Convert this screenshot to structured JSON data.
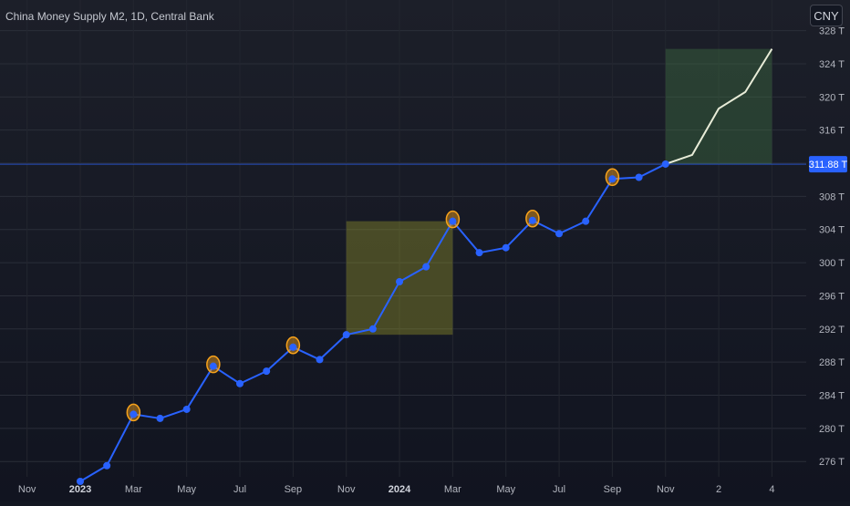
{
  "header": {
    "title": "China Money Supply M2, 1D, Central Bank",
    "currency": "CNY"
  },
  "chart_data": {
    "type": "line",
    "title": "China Money Supply M2, 1D, Central Bank",
    "unit_suffix": "T",
    "ylim": [
      272.5,
      329.5
    ],
    "y_ticks": [
      276,
      280,
      284,
      288,
      292,
      296,
      300,
      304,
      308,
      312,
      316,
      320,
      324,
      328
    ],
    "y_tick_labels": [
      "276 T",
      "280 T",
      "284 T",
      "288 T",
      "292 T",
      "296 T",
      "300 T",
      "304 T",
      "308 T",
      "311.88 T",
      "316 T",
      "320 T",
      "324 T",
      "328 T"
    ],
    "current_value": 311.88,
    "current_value_label": "311.88 T",
    "x_tick_labels": [
      "Nov",
      "2023",
      "Mar",
      "May",
      "Jul",
      "Sep",
      "Nov",
      "2024",
      "Mar",
      "May",
      "Jul",
      "Sep",
      "Nov",
      "2",
      "4"
    ],
    "series": [
      {
        "color": "#2962ff",
        "values": [
          273.6,
          275.5,
          281.7,
          281.2,
          282.3,
          287.5,
          285.4,
          286.9,
          289.8,
          288.3,
          291.3,
          292.0,
          297.7,
          299.5,
          305.0,
          301.2,
          301.8,
          305.1,
          303.5,
          305.0,
          310.1,
          310.3,
          311.9
        ],
        "markers": true
      },
      {
        "color": "#e8ecd8",
        "values": [
          311.9,
          313.0,
          318.6,
          320.6,
          325.8
        ],
        "markers": false
      }
    ],
    "highlighted_points": [
      2,
      5,
      8,
      14,
      17,
      20
    ],
    "highlight_color": "#f7a21b",
    "zones": [
      {
        "start": 10,
        "end": 14,
        "ylow": 291.3,
        "yhigh": 305.0,
        "color": "#b5b52a"
      },
      {
        "start": 22,
        "end": 26,
        "ylow": 311.9,
        "yhigh": 325.8,
        "color": "#4c8a4c"
      }
    ],
    "grid": true
  }
}
